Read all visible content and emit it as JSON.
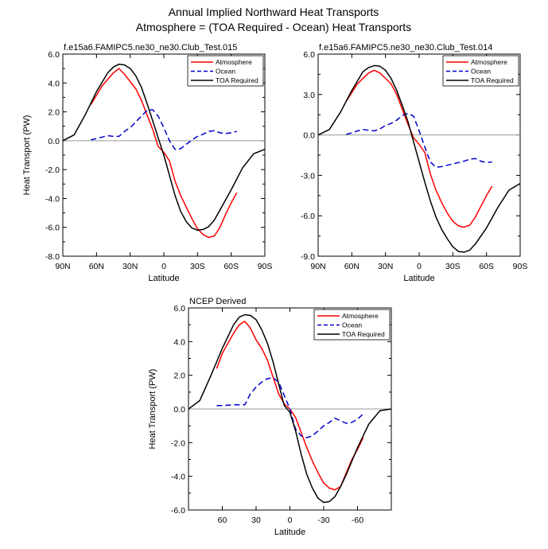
{
  "figure": {
    "title_line1": "Annual Implied Northward Heat Transports",
    "title_line2": "Atmosphere = (TOA Required - Ocean) Heat Transports"
  },
  "chart_data": [
    {
      "type": "line",
      "title": "f.e15a6.FAMIPC5.ne30_ne30.Club_Test.015",
      "xlabel": "Latitude",
      "ylabel": "Heat Transport (PW)",
      "xlim": [
        90,
        -90
      ],
      "ylim": [
        -8,
        6
      ],
      "xticks": [
        90,
        60,
        30,
        0,
        -30,
        -60,
        -90
      ],
      "xtick_labels": [
        "90N",
        "60N",
        "30N",
        "0",
        "30S",
        "60S",
        "90S"
      ],
      "yticks": [
        -8,
        -6,
        -4,
        -2,
        0,
        2,
        4,
        6
      ],
      "ytick_labels": [
        "-8.0",
        "-6.0",
        "-4.0",
        "-2.0",
        "0.0",
        "2.0",
        "4.0",
        "6.0"
      ],
      "zero_line": true,
      "legend": [
        "Atmosphere",
        "Ocean",
        "TOA Required"
      ],
      "series": [
        {
          "name": "Atmosphere",
          "color": "#ff0000",
          "dash": "solid",
          "x": [
            65,
            55,
            45,
            40,
            35,
            30,
            25,
            20,
            15,
            10,
            5,
            0,
            -5,
            -10,
            -15,
            -20,
            -25,
            -30,
            -35,
            -40,
            -45,
            -50,
            -55,
            -60,
            -65
          ],
          "y": [
            2.5,
            3.8,
            4.7,
            5.0,
            4.6,
            4.1,
            3.6,
            2.8,
            1.8,
            0.8,
            -0.4,
            -0.8,
            -1.4,
            -2.8,
            -3.8,
            -4.6,
            -5.4,
            -6.1,
            -6.5,
            -6.7,
            -6.6,
            -6.0,
            -5.1,
            -4.3,
            -3.6
          ]
        },
        {
          "name": "Ocean",
          "color": "#0000cc",
          "dash": "dashed",
          "x": [
            65,
            55,
            50,
            45,
            40,
            35,
            30,
            25,
            20,
            15,
            10,
            5,
            0,
            -5,
            -10,
            -15,
            -20,
            -25,
            -30,
            -35,
            -40,
            -45,
            -50,
            -55,
            -60,
            -65
          ],
          "y": [
            0.05,
            0.25,
            0.35,
            0.3,
            0.3,
            0.65,
            0.9,
            1.3,
            1.7,
            2.1,
            2.15,
            1.7,
            0.9,
            0.0,
            -0.6,
            -0.55,
            -0.25,
            0.05,
            0.3,
            0.45,
            0.65,
            0.7,
            0.55,
            0.5,
            0.55,
            0.65
          ]
        },
        {
          "name": "TOA Required",
          "color": "#000000",
          "dash": "solid",
          "x": [
            90,
            80,
            70,
            60,
            50,
            45,
            40,
            35,
            30,
            25,
            20,
            15,
            10,
            5,
            0,
            -5,
            -10,
            -15,
            -20,
            -25,
            -30,
            -35,
            -40,
            -45,
            -50,
            -60,
            -70,
            -80,
            -90
          ],
          "y": [
            0.0,
            0.4,
            1.8,
            3.4,
            4.7,
            5.1,
            5.3,
            5.25,
            5.0,
            4.5,
            3.7,
            2.6,
            1.4,
            0.2,
            -1.0,
            -2.4,
            -3.8,
            -4.9,
            -5.6,
            -6.05,
            -6.2,
            -6.15,
            -5.95,
            -5.5,
            -4.8,
            -3.4,
            -1.9,
            -0.9,
            -0.6
          ]
        }
      ]
    },
    {
      "type": "line",
      "title": "f.e15a6.FAMIPC5.ne30_ne30.Club_Test.014",
      "xlabel": "Latitude",
      "ylabel": "",
      "xlim": [
        90,
        -90
      ],
      "ylim": [
        -9,
        6
      ],
      "xticks": [
        90,
        60,
        30,
        0,
        -30,
        -60,
        -90
      ],
      "xtick_labels": [
        "90N",
        "60N",
        "30N",
        "0",
        "30S",
        "60S",
        "90S"
      ],
      "yticks": [
        -9,
        -6,
        -3,
        0,
        3,
        6
      ],
      "ytick_labels": [
        "-9.0",
        "-6.0",
        "-3.0",
        "0.0",
        "3.0",
        "6.0"
      ],
      "zero_line": true,
      "legend": [
        "Atmosphere",
        "Ocean",
        "TOA Required"
      ],
      "series": [
        {
          "name": "Atmosphere",
          "color": "#ff0000",
          "dash": "solid",
          "x": [
            65,
            55,
            45,
            40,
            35,
            30,
            25,
            20,
            15,
            10,
            5,
            0,
            -5,
            -10,
            -15,
            -20,
            -25,
            -30,
            -35,
            -40,
            -45,
            -50,
            -55,
            -60,
            -65
          ],
          "y": [
            2.5,
            3.8,
            4.6,
            4.8,
            4.6,
            4.2,
            3.8,
            3.0,
            1.9,
            0.8,
            -0.2,
            -0.7,
            -1.3,
            -2.9,
            -4.1,
            -5.0,
            -5.8,
            -6.4,
            -6.75,
            -6.85,
            -6.7,
            -6.1,
            -5.3,
            -4.5,
            -3.8
          ]
        },
        {
          "name": "Ocean",
          "color": "#0000cc",
          "dash": "dashed",
          "x": [
            65,
            60,
            55,
            50,
            45,
            40,
            35,
            30,
            25,
            20,
            15,
            10,
            5,
            0,
            -5,
            -10,
            -15,
            -20,
            -25,
            -30,
            -35,
            -40,
            -45,
            -50,
            -55,
            -60,
            -65
          ],
          "y": [
            0.05,
            0.15,
            0.3,
            0.4,
            0.35,
            0.3,
            0.45,
            0.7,
            0.85,
            1.1,
            1.45,
            1.6,
            1.4,
            0.3,
            -0.9,
            -2.0,
            -2.4,
            -2.35,
            -2.25,
            -2.15,
            -2.05,
            -1.95,
            -1.8,
            -1.75,
            -1.95,
            -2.05,
            -2.0
          ]
        },
        {
          "name": "TOA Required",
          "color": "#000000",
          "dash": "solid",
          "x": [
            90,
            80,
            70,
            60,
            50,
            45,
            40,
            35,
            30,
            25,
            20,
            15,
            10,
            5,
            0,
            -5,
            -10,
            -15,
            -20,
            -25,
            -30,
            -35,
            -40,
            -45,
            -50,
            -60,
            -70,
            -80,
            -90
          ],
          "y": [
            0.0,
            0.4,
            1.7,
            3.3,
            4.7,
            5.0,
            5.15,
            5.1,
            4.8,
            4.2,
            3.3,
            2.2,
            1.0,
            -0.5,
            -2.0,
            -3.5,
            -4.9,
            -6.1,
            -7.0,
            -7.7,
            -8.3,
            -8.65,
            -8.7,
            -8.55,
            -8.1,
            -6.9,
            -5.4,
            -4.1,
            -3.6
          ]
        }
      ]
    },
    {
      "type": "line",
      "title": "NCEP Derived",
      "xlabel": "Latitude",
      "ylabel": "Heat Transport (PW)",
      "xlim": [
        90,
        -90
      ],
      "ylim": [
        -6,
        6
      ],
      "xticks": [
        60,
        30,
        0,
        -30,
        -60
      ],
      "xtick_labels": [
        "60",
        "30",
        "0",
        "-30",
        "-60"
      ],
      "yticks": [
        -6,
        -4,
        -2,
        0,
        2,
        4,
        6
      ],
      "ytick_labels": [
        "-6.0",
        "-4.0",
        "-2.0",
        "0.0",
        "2.0",
        "4.0",
        "6.0"
      ],
      "zero_line": true,
      "legend": [
        "Atmosphere",
        "Ocean",
        "TOA Required"
      ],
      "series": [
        {
          "name": "Atmosphere",
          "color": "#ff0000",
          "dash": "solid",
          "x": [
            65,
            60,
            55,
            50,
            45,
            40,
            35,
            30,
            25,
            20,
            15,
            10,
            5,
            0,
            -5,
            -10,
            -15,
            -20,
            -25,
            -30,
            -35,
            -40,
            -45,
            -50,
            -55,
            -60,
            -65
          ],
          "y": [
            2.4,
            3.3,
            3.9,
            4.5,
            5.0,
            5.2,
            4.8,
            4.1,
            3.6,
            2.9,
            1.9,
            0.9,
            0.3,
            0.0,
            -0.5,
            -1.4,
            -2.3,
            -3.1,
            -3.8,
            -4.4,
            -4.7,
            -4.8,
            -4.6,
            -3.8,
            -3.0,
            -2.4,
            -1.7
          ]
        },
        {
          "name": "Ocean",
          "color": "#0000cc",
          "dash": "dashed",
          "x": [
            65,
            60,
            55,
            50,
            45,
            40,
            35,
            30,
            25,
            20,
            15,
            10,
            5,
            0,
            -5,
            -10,
            -15,
            -20,
            -25,
            -30,
            -35,
            -40,
            -45,
            -50,
            -55,
            -60,
            -65
          ],
          "y": [
            0.2,
            0.2,
            0.22,
            0.25,
            0.25,
            0.25,
            0.9,
            1.3,
            1.6,
            1.8,
            1.85,
            1.6,
            0.8,
            0.0,
            -1.2,
            -1.6,
            -1.7,
            -1.6,
            -1.3,
            -1.0,
            -0.8,
            -0.55,
            -0.7,
            -0.85,
            -0.8,
            -0.6,
            -0.3
          ]
        },
        {
          "name": "TOA Required",
          "color": "#000000",
          "dash": "solid",
          "x": [
            90,
            80,
            70,
            60,
            50,
            45,
            40,
            35,
            30,
            25,
            20,
            15,
            10,
            5,
            0,
            -5,
            -10,
            -15,
            -20,
            -25,
            -30,
            -35,
            -40,
            -45,
            -50,
            -60,
            -70,
            -80,
            -90
          ],
          "y": [
            0.0,
            0.5,
            2.0,
            3.6,
            5.0,
            5.45,
            5.6,
            5.55,
            5.3,
            4.7,
            3.9,
            2.8,
            1.5,
            0.2,
            -0.2,
            -1.3,
            -2.7,
            -3.9,
            -4.7,
            -5.3,
            -5.55,
            -5.5,
            -5.2,
            -4.6,
            -3.9,
            -2.3,
            -0.9,
            -0.1,
            0.0
          ]
        }
      ]
    }
  ]
}
